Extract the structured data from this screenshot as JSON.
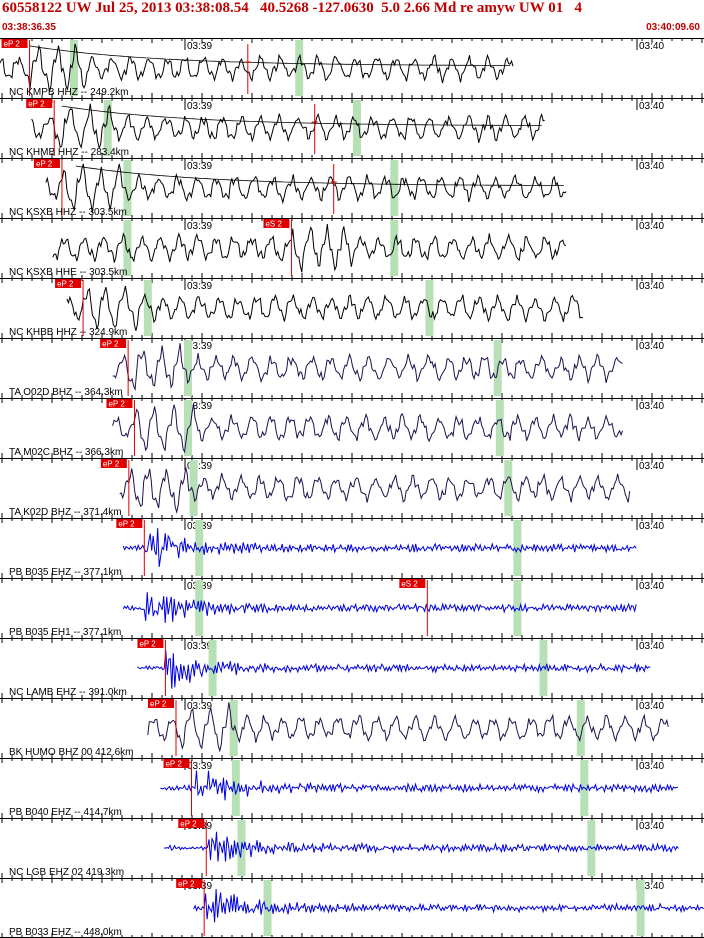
{
  "header": {
    "title": "60558122 UW Jul 25, 2013 03:38:08.54   40.5268 -127.0630  5.0 2.66 Md re amyw UW 01   4",
    "start_time": "03:38:36.35",
    "end_time": "03:40:09.60"
  },
  "time_labels": {
    "minute_a": "03:39",
    "minute_b": "03:40"
  },
  "colors": {
    "header_text": "#c00000",
    "pick_box": "#e00000",
    "window_band": "#b7e0b7",
    "grid": "#000000"
  },
  "traces": [
    {
      "label": "NC KMPB HHZ -- 249.2km",
      "color": "#000000",
      "pick": {
        "label": "eP 2",
        "t": 0.042
      },
      "extra_picks": [
        {
          "label": "",
          "t": 0.352
        }
      ],
      "bands": [
        0.105,
        0.425
      ],
      "start": 0.0,
      "end": 0.73,
      "coda": true
    },
    {
      "label": "NC KHMB HHZ -- 283.4km",
      "color": "#000000",
      "pick": {
        "label": "eP 2",
        "t": 0.077
      },
      "extra_picks": [
        {
          "label": "",
          "t": 0.447
        }
      ],
      "bands": [
        0.153,
        0.507
      ],
      "start": 0.045,
      "end": 0.775,
      "coda": true
    },
    {
      "label": "NC KSXB HHZ -- 303.5km",
      "color": "#000000",
      "pick": {
        "label": "eP 2",
        "t": 0.088
      },
      "extra_picks": [
        {
          "label": "",
          "t": 0.474
        }
      ],
      "bands": [
        0.181,
        0.56
      ],
      "start": 0.065,
      "end": 0.805,
      "coda": true
    },
    {
      "label": "NC KSXB HHE -- 303.5km",
      "color": "#000000",
      "pick": {
        "label": "eS 2",
        "t": 0.414
      },
      "extra_picks": [],
      "bands": [
        0.181,
        0.56
      ],
      "start": 0.075,
      "end": 0.805,
      "coda": false
    },
    {
      "label": "NC KHBB HHZ -- 324.9km",
      "color": "#000000",
      "pick": {
        "label": "eP 2",
        "t": 0.118
      },
      "extra_picks": [],
      "bands": [
        0.21,
        0.61
      ],
      "start": 0.095,
      "end": 0.83,
      "coda": false
    },
    {
      "label": "TA O02D BHZ -- 364.3km",
      "color": "#20104a",
      "pick": {
        "label": "eP 2",
        "t": 0.182
      },
      "extra_picks": [],
      "bands": [
        0.267,
        0.707
      ],
      "start": 0.16,
      "end": 0.885,
      "coda": false
    },
    {
      "label": "TA M02C BHZ -- 366.3km",
      "color": "#20104a",
      "pick": {
        "label": "eP 2",
        "t": 0.191
      },
      "extra_picks": [],
      "bands": [
        0.267,
        0.71
      ],
      "start": 0.16,
      "end": 0.885,
      "coda": false
    },
    {
      "label": "TA K02D BHZ -- 371.4km",
      "color": "#20104a",
      "pick": {
        "label": "eP 2",
        "t": 0.183
      },
      "extra_picks": [],
      "bands": [
        0.275,
        0.722
      ],
      "start": 0.17,
      "end": 0.895,
      "coda": false
    },
    {
      "label": "PB B035 EHZ -- 377.1km",
      "color": "#0000e0",
      "pick": {
        "label": "eP 2",
        "t": 0.205
      },
      "extra_picks": [],
      "bands": [
        0.283,
        0.735
      ],
      "start": 0.175,
      "end": 0.905,
      "coda": false
    },
    {
      "label": "PB B035 EH1 -- 377.1km",
      "color": "#0000e0",
      "pick": {
        "label": "eS 2",
        "t": 0.607
      },
      "extra_picks": [],
      "bands": [
        0.283,
        0.735
      ],
      "start": 0.175,
      "end": 0.905,
      "coda": false
    },
    {
      "label": "NC LAMB EHZ -- 391.0km",
      "color": "#0000e0",
      "pick": {
        "label": "eP 2",
        "t": 0.235
      },
      "extra_picks": [],
      "bands": [
        0.302,
        0.772
      ],
      "start": 0.195,
      "end": 0.925,
      "coda": false
    },
    {
      "label": "BK HUMO BHZ 00 412.6km",
      "color": "#20104a",
      "pick": {
        "label": "eP 2",
        "t": 0.25
      },
      "extra_picks": [],
      "bands": [
        0.332,
        0.825
      ],
      "start": 0.21,
      "end": 0.95,
      "coda": false
    },
    {
      "label": "PB B040 EHZ -- 414.7km",
      "color": "#0000e0",
      "pick": {
        "label": "eP 2",
        "t": 0.272
      },
      "extra_picks": [],
      "bands": [
        0.335,
        0.83
      ],
      "start": 0.228,
      "end": 0.965,
      "coda": false
    },
    {
      "label": "NC LGB EHZ 02 419.3km",
      "color": "#0000e0",
      "pick": {
        "label": "eP 2",
        "t": 0.293
      },
      "extra_picks": [],
      "bands": [
        0.343,
        0.84
      ],
      "start": 0.233,
      "end": 0.965,
      "coda": false
    },
    {
      "label": "PB B033 EHZ -- 448.0km",
      "color": "#0000e0",
      "pick": {
        "label": "eP 2",
        "t": 0.29
      },
      "extra_picks": [],
      "bands": [
        0.38,
        0.91
      ],
      "start": 0.275,
      "end": 1.0,
      "coda": false
    }
  ]
}
